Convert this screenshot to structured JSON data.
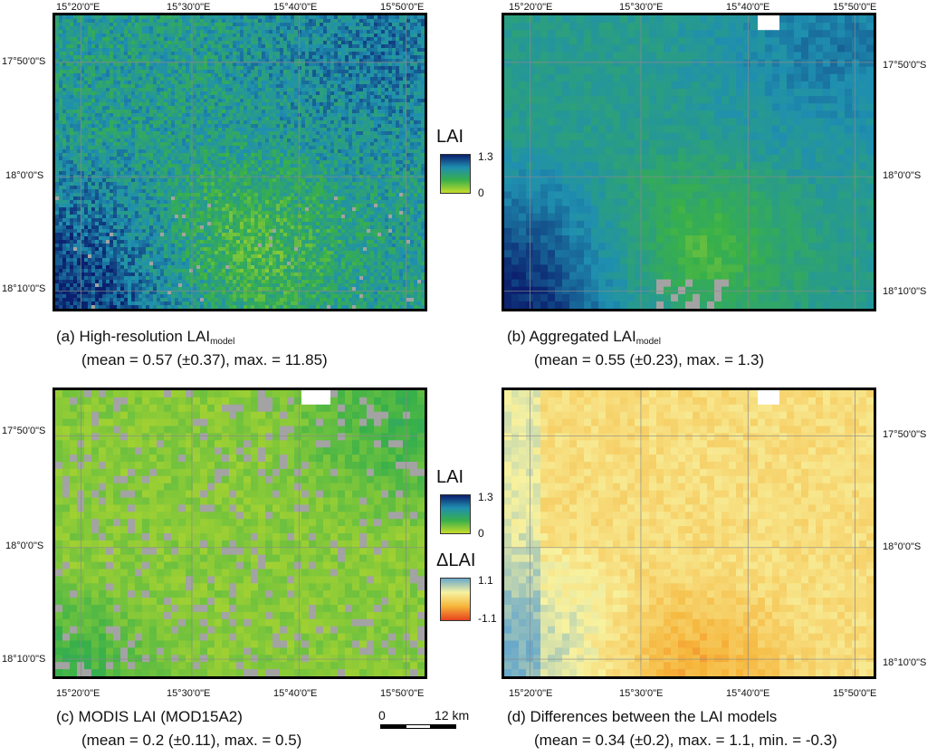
{
  "coords": {
    "lon": [
      "15°20'0\"E",
      "15°30'0\"E",
      "15°40'0\"E",
      "15°50'0\"E"
    ],
    "lat": [
      "17°50'0\"S",
      "18°0'0\"S",
      "18°10'0\"S"
    ]
  },
  "panels": {
    "a": {
      "caption_prefix": "(a) High-resolution LAI",
      "caption_sub": "model",
      "stats": "(mean = 0.57 (±0.37), max. = 11.85)"
    },
    "b": {
      "caption_prefix": "(b) Aggregated LAI",
      "caption_sub": "model",
      "stats": "(mean = 0.55 (±0.23), max. = 1.3)"
    },
    "c": {
      "caption_prefix": "(c) MODIS LAI (MOD15A2)",
      "stats": "(mean = 0.2 (±0.11), max. = 0.5)"
    },
    "d": {
      "caption_prefix": "(d) Differences between the LAI models",
      "stats": "(mean = 0.34 (±0.2), max. = 1.1, min. = -0.3)"
    }
  },
  "legend_lai": {
    "title": "LAI",
    "max": "1.3",
    "min": "0",
    "colors": [
      "#0b1f6e",
      "#1f8fb0",
      "#38b04a",
      "#c7dd2a"
    ]
  },
  "legend_delta": {
    "title": "ΔLAI",
    "max": "1.1",
    "min": "-1.1",
    "colors": [
      "#6aa9c9",
      "#f7f2a0",
      "#f6b53a",
      "#e8421d"
    ]
  },
  "scalebar": {
    "start": "0",
    "end": "12 km"
  },
  "colors": {
    "nodata": "#a3a3a3",
    "frame": "#000000"
  }
}
